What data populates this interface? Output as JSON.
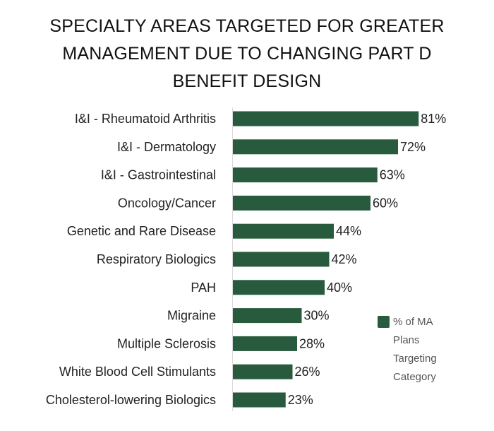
{
  "chart_data": {
    "type": "bar",
    "orientation": "horizontal",
    "title": "SPECIALTY AREAS TARGETED FOR GREATER MANAGEMENT DUE TO CHANGING PART D BENEFIT DESIGN",
    "categories": [
      "I&I - Rheumatoid Arthritis",
      "I&I - Dermatology",
      "I&I - Gastrointestinal",
      "Oncology/Cancer",
      "Genetic and Rare Disease",
      "Respiratory Biologics",
      "PAH",
      "Migraine",
      "Multiple Sclerosis",
      "White Blood Cell Stimulants",
      "Cholesterol-lowering Biologics"
    ],
    "series": [
      {
        "name": "% of MA Plans Targeting Category",
        "values": [
          81,
          72,
          63,
          60,
          44,
          42,
          40,
          30,
          28,
          26,
          23
        ],
        "labels": [
          "81%",
          "72%",
          "63%",
          "60%",
          "44%",
          "42%",
          "40%",
          "30%",
          "28%",
          "26%",
          "23%"
        ],
        "color": "#285B3E"
      }
    ],
    "xlim": [
      0,
      100
    ],
    "grid": false,
    "legend_position": "right"
  }
}
